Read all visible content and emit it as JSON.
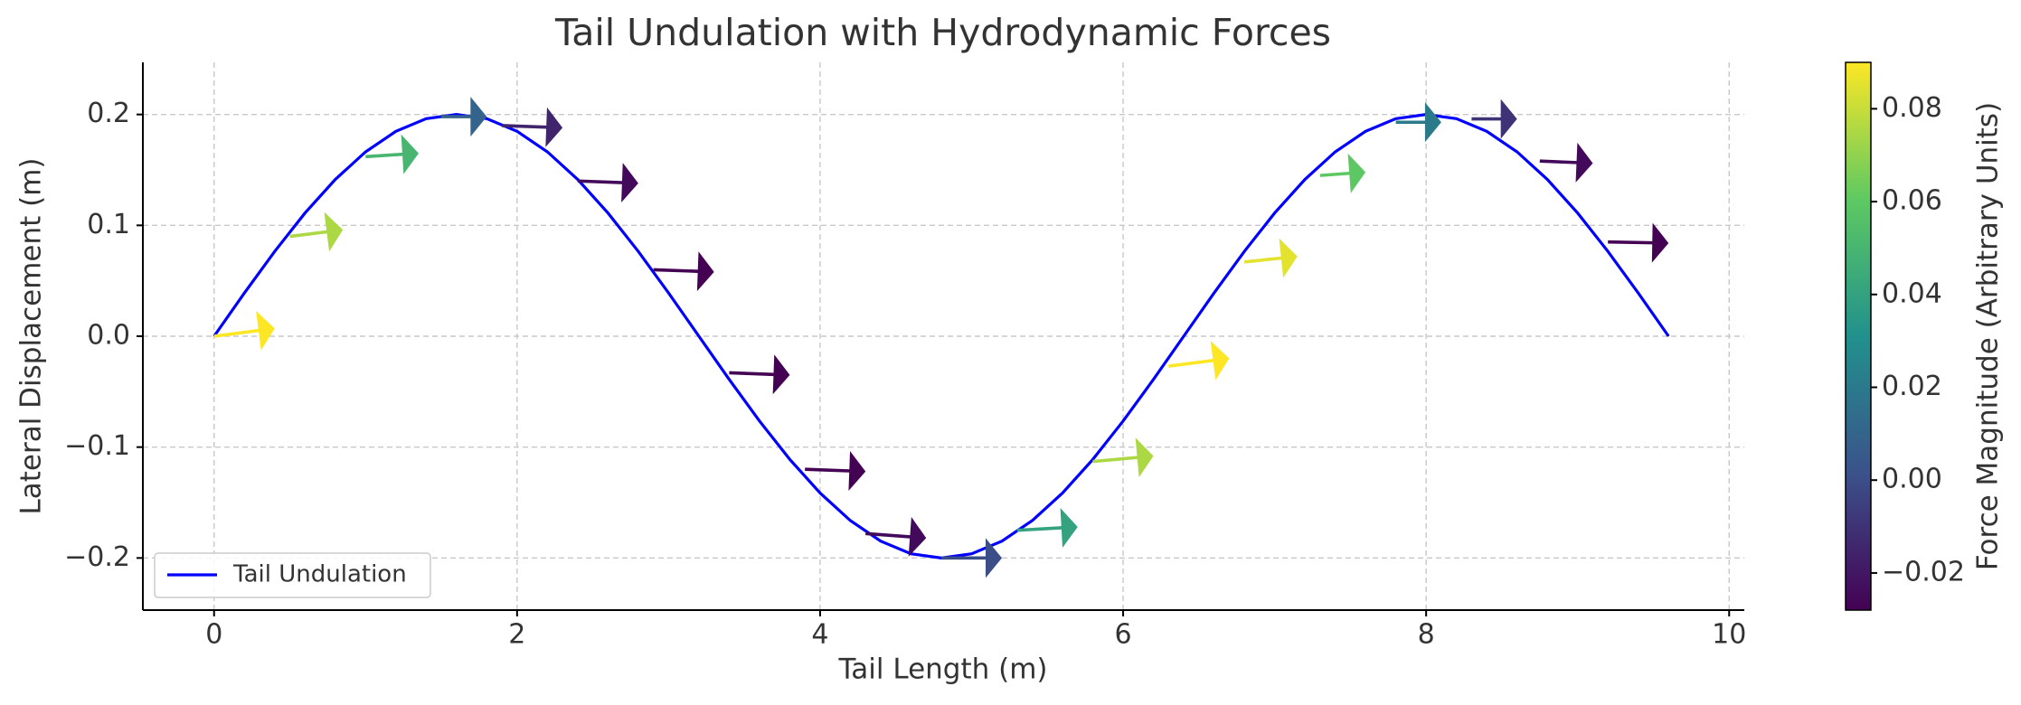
{
  "chart_data": {
    "type": "line",
    "title": "Tail Undulation with Hydrodynamic Forces",
    "x_label": "Tail Length (m)",
    "y_label": "Lateral Displacement (m)",
    "x": [
      0,
      0.2,
      0.4,
      0.6,
      0.8,
      1,
      1.2,
      1.4,
      1.6,
      1.8,
      2,
      2.2,
      2.4,
      2.6,
      2.8,
      3,
      3.2,
      3.4,
      3.6,
      3.8,
      4,
      4.2,
      4.4,
      4.6,
      4.8,
      5,
      5.2,
      5.4,
      5.6,
      5.8,
      6,
      6.2,
      6.4,
      6.6,
      6.8,
      7,
      7.2,
      7.4,
      7.6,
      7.8,
      8,
      8.2,
      8.4,
      8.6,
      8.8,
      9,
      9.2,
      9.4,
      9.6
    ],
    "series": [
      {
        "name": "Tail Undulation",
        "color": "#0000ff",
        "values": [
          0,
          0.039,
          0.0765,
          0.1111,
          0.1414,
          0.1663,
          0.1848,
          0.1962,
          0.2,
          0.1962,
          0.1848,
          0.1663,
          0.1414,
          0.1111,
          0.0765,
          0.039,
          0,
          -0.039,
          -0.0765,
          -0.1111,
          -0.1414,
          -0.1663,
          -0.1848,
          -0.1962,
          -0.2,
          -0.1962,
          -0.1848,
          -0.1663,
          -0.1414,
          -0.1111,
          -0.0765,
          -0.039,
          0,
          0.039,
          0.0765,
          0.1111,
          0.1414,
          0.1663,
          0.1848,
          0.1962,
          0.2,
          0.1962,
          0.1848,
          0.1663,
          0.1414,
          0.1111,
          0.0765,
          0.039,
          0
        ]
      }
    ],
    "arrows": {
      "x": [
        0,
        0.5,
        1.0,
        1.5,
        1.9,
        2.4,
        2.9,
        3.4,
        3.9,
        4.3,
        4.8,
        5.3,
        5.8,
        6.3,
        6.8,
        7.3,
        7.8,
        8.3,
        8.75,
        9.2
      ],
      "y": [
        0,
        0.09,
        0.162,
        0.198,
        0.19,
        0.14,
        0.06,
        -0.033,
        -0.12,
        -0.178,
        -0.2,
        -0.175,
        -0.113,
        -0.027,
        0.067,
        0.145,
        0.193,
        0.196,
        0.158,
        0.085
      ],
      "u": [
        0.4,
        0.35,
        0.35,
        0.3,
        0.4,
        0.4,
        0.4,
        0.4,
        0.4,
        0.4,
        0.4,
        0.4,
        0.4,
        0.4,
        0.35,
        0.3,
        0.3,
        0.3,
        0.35,
        0.4
      ],
      "v": [
        0.007,
        0.006,
        0.003,
        0,
        -0.002,
        -0.002,
        -0.002,
        -0.002,
        -0.002,
        -0.004,
        0,
        0.003,
        0.005,
        0.007,
        0.005,
        0.003,
        0,
        0,
        -0.002,
        -0.001
      ],
      "magnitude": [
        0.09,
        0.075,
        0.05,
        0.01,
        -0.015,
        -0.025,
        -0.028,
        -0.028,
        -0.028,
        -0.025,
        0.0,
        0.04,
        0.075,
        0.09,
        0.085,
        0.06,
        0.02,
        -0.01,
        -0.025,
        -0.028
      ]
    },
    "colorbar": {
      "label": "Force Magnitude (Arbitrary Units)",
      "lim": [
        -0.028,
        0.09
      ],
      "ticks": [
        {
          "value": -0.02,
          "label": "−0.02"
        },
        {
          "value": 0.0,
          "label": "0.00"
        },
        {
          "value": 0.02,
          "label": "0.02"
        },
        {
          "value": 0.04,
          "label": "0.04"
        },
        {
          "value": 0.06,
          "label": "0.06"
        },
        {
          "value": 0.08,
          "label": "0.08"
        }
      ]
    },
    "xlim": [
      -0.47,
      10.1
    ],
    "ylim": [
      -0.247,
      0.247
    ],
    "xticks": [
      0,
      2,
      4,
      6,
      8,
      10
    ],
    "yticks": [
      {
        "value": -0.2,
        "label": "−0.2"
      },
      {
        "value": -0.1,
        "label": "−0.1"
      },
      {
        "value": 0.0,
        "label": "0.0"
      },
      0.1,
      0.2
    ],
    "grid": true,
    "legend": "lower left"
  }
}
